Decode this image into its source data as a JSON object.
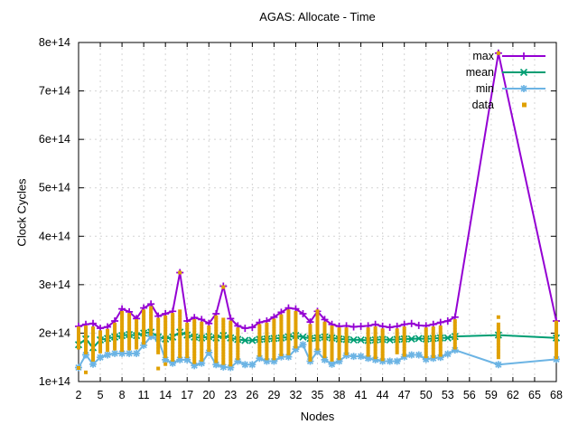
{
  "window": {
    "title": "AGAS: Allocate - Time"
  },
  "chart_data": {
    "type": "line",
    "title": "AGAS: Allocate - Time",
    "xlabel": "Nodes",
    "ylabel": "Clock Cycles",
    "value_unit": "1e+14 clock cycles (all series values are multiples of 1e+14)",
    "xlim": [
      2,
      68
    ],
    "ylim_labels": [
      "1e+14",
      "8e+14"
    ],
    "grid": true,
    "legend_position": "top-right-inside",
    "x_ticks": [
      2,
      5,
      8,
      11,
      14,
      17,
      20,
      23,
      26,
      29,
      32,
      35,
      38,
      41,
      44,
      47,
      50,
      53,
      56,
      59,
      62,
      65,
      68
    ],
    "y_ticks": [
      {
        "value": 1,
        "label": "1e+14"
      },
      {
        "value": 2,
        "label": "2e+14"
      },
      {
        "value": 3,
        "label": "3e+14"
      },
      {
        "value": 4,
        "label": "4e+14"
      },
      {
        "value": 5,
        "label": "5e+14"
      },
      {
        "value": 6,
        "label": "6e+14"
      },
      {
        "value": 7,
        "label": "7e+14"
      },
      {
        "value": 8,
        "label": "8e+14"
      }
    ],
    "x": [
      2,
      3,
      4,
      5,
      6,
      7,
      8,
      9,
      10,
      11,
      12,
      13,
      14,
      15,
      16,
      17,
      18,
      19,
      20,
      21,
      22,
      23,
      24,
      25,
      26,
      27,
      28,
      29,
      30,
      31,
      32,
      33,
      34,
      35,
      36,
      37,
      38,
      39,
      40,
      41,
      42,
      43,
      44,
      45,
      46,
      47,
      48,
      49,
      50,
      51,
      52,
      53,
      54,
      60,
      68
    ],
    "series": [
      {
        "name": "max",
        "color": "#9400d3",
        "marker": "plus",
        "values": [
          2.14,
          2.18,
          2.2,
          2.1,
          2.13,
          2.25,
          2.5,
          2.44,
          2.3,
          2.52,
          2.6,
          2.35,
          2.4,
          2.45,
          3.25,
          2.25,
          2.32,
          2.28,
          2.2,
          2.4,
          2.97,
          2.3,
          2.15,
          2.1,
          2.12,
          2.22,
          2.25,
          2.33,
          2.43,
          2.52,
          2.5,
          2.4,
          2.23,
          2.45,
          2.28,
          2.18,
          2.14,
          2.15,
          2.13,
          2.14,
          2.15,
          2.18,
          2.14,
          2.12,
          2.14,
          2.18,
          2.2,
          2.16,
          2.15,
          2.18,
          2.22,
          2.25,
          2.33,
          7.78,
          2.25
        ]
      },
      {
        "name": "mean",
        "color": "#009e73",
        "marker": "cross",
        "values": [
          1.76,
          1.88,
          1.7,
          1.86,
          1.89,
          1.92,
          1.95,
          1.97,
          1.95,
          2.0,
          2.02,
          1.92,
          1.88,
          1.92,
          2.02,
          1.96,
          1.92,
          1.9,
          1.93,
          1.9,
          1.95,
          1.9,
          1.87,
          1.85,
          1.85,
          1.87,
          1.88,
          1.89,
          1.9,
          1.92,
          1.95,
          1.92,
          1.89,
          1.9,
          1.92,
          1.9,
          1.88,
          1.87,
          1.86,
          1.86,
          1.85,
          1.86,
          1.87,
          1.86,
          1.87,
          1.88,
          1.88,
          1.89,
          1.88,
          1.89,
          1.9,
          1.9,
          1.93,
          1.96,
          1.9
        ]
      },
      {
        "name": "min",
        "color": "#6cb4e4",
        "marker": "star",
        "values": [
          1.29,
          1.55,
          1.36,
          1.5,
          1.55,
          1.58,
          1.58,
          1.58,
          1.58,
          1.75,
          1.93,
          1.88,
          1.45,
          1.38,
          1.45,
          1.45,
          1.33,
          1.38,
          1.6,
          1.35,
          1.3,
          1.29,
          1.42,
          1.35,
          1.35,
          1.48,
          1.42,
          1.42,
          1.51,
          1.51,
          1.67,
          1.76,
          1.42,
          1.62,
          1.45,
          1.36,
          1.42,
          1.54,
          1.52,
          1.52,
          1.48,
          1.45,
          1.42,
          1.42,
          1.42,
          1.51,
          1.55,
          1.55,
          1.46,
          1.48,
          1.5,
          1.57,
          1.65,
          1.35,
          1.46
        ]
      }
    ],
    "scatter": {
      "name": "data",
      "color": "#e0a000",
      "marker": "square",
      "columns_note": "vertical clusters of raw data samples per node: [node, low, high]",
      "columns": [
        [
          2,
          1.7,
          2.1
        ],
        [
          3,
          1.6,
          2.12
        ],
        [
          4,
          1.45,
          2.1
        ],
        [
          5,
          1.62,
          2.02
        ],
        [
          6,
          1.65,
          2.05
        ],
        [
          7,
          1.68,
          2.18
        ],
        [
          8,
          1.65,
          2.42
        ],
        [
          9,
          1.68,
          2.38
        ],
        [
          10,
          1.7,
          2.25
        ],
        [
          11,
          1.8,
          2.45
        ],
        [
          12,
          1.98,
          2.52
        ],
        [
          13,
          1.6,
          2.28
        ],
        [
          14,
          1.52,
          2.33
        ],
        [
          15,
          1.45,
          2.38
        ],
        [
          16,
          1.52,
          2.45
        ],
        [
          17,
          1.52,
          2.18
        ],
        [
          18,
          1.4,
          2.25
        ],
        [
          19,
          1.45,
          2.2
        ],
        [
          20,
          1.65,
          2.12
        ],
        [
          21,
          1.42,
          2.33
        ],
        [
          22,
          1.38,
          2.28
        ],
        [
          23,
          1.35,
          2.22
        ],
        [
          24,
          1.48,
          2.08
        ],
        [
          27,
          1.55,
          2.15
        ],
        [
          28,
          1.48,
          2.18
        ],
        [
          29,
          1.48,
          2.26
        ],
        [
          30,
          1.56,
          2.35
        ],
        [
          31,
          1.58,
          2.45
        ],
        [
          32,
          1.72,
          2.42
        ],
        [
          34,
          1.45,
          2.15
        ],
        [
          35,
          1.68,
          2.38
        ],
        [
          36,
          1.52,
          2.2
        ],
        [
          37,
          1.45,
          2.12
        ],
        [
          38,
          1.48,
          2.08
        ],
        [
          39,
          1.58,
          2.08
        ],
        [
          42,
          1.55,
          2.08
        ],
        [
          43,
          1.5,
          2.1
        ],
        [
          44,
          1.46,
          2.06
        ],
        [
          46,
          1.6,
          2.06
        ],
        [
          47,
          1.55,
          2.1
        ],
        [
          50,
          1.52,
          2.08
        ],
        [
          51,
          1.52,
          2.1
        ],
        [
          52,
          1.55,
          2.12
        ],
        [
          54,
          1.7,
          2.25
        ],
        [
          60,
          1.5,
          2.18
        ],
        [
          68,
          1.5,
          2.22
        ]
      ],
      "points": [
        [
          2,
          1.28
        ],
        [
          3,
          1.19
        ],
        [
          13,
          1.27
        ],
        [
          14,
          1.36
        ],
        [
          16,
          3.25
        ],
        [
          22,
          2.95
        ],
        [
          35,
          2.45
        ],
        [
          60,
          2.33
        ],
        [
          60,
          7.78
        ]
      ]
    },
    "legend": [
      {
        "label": "max",
        "color": "#9400d3",
        "marker": "plus",
        "line": true
      },
      {
        "label": "mean",
        "color": "#009e73",
        "marker": "cross",
        "line": true
      },
      {
        "label": "min",
        "color": "#6cb4e4",
        "marker": "star",
        "line": true
      },
      {
        "label": "data",
        "color": "#e0a000",
        "marker": "square",
        "line": false
      }
    ],
    "colors": {
      "max": "#9400d3",
      "mean": "#009e73",
      "min": "#6cb4e4",
      "data": "#e0a000",
      "grid": "#d4d4d4",
      "axis": "#000000",
      "background": "#ffffff"
    }
  }
}
